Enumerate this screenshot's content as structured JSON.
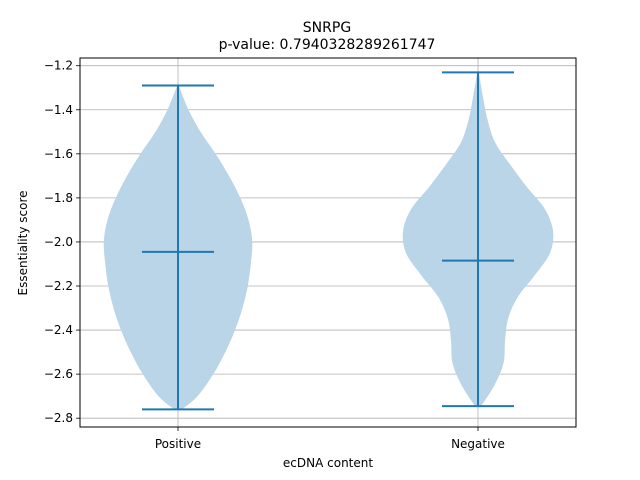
{
  "chart_data": {
    "type": "violin",
    "title": "SNRPG",
    "subtitle": "p-value: 0.7940328289261747",
    "xlabel": "ecDNA content",
    "ylabel": "Essentiality score",
    "categories": [
      "Positive",
      "Negative"
    ],
    "ylim": [
      -2.84,
      -1.165
    ],
    "yticks": [
      -1.2,
      -1.4,
      -1.6,
      -1.8,
      -2.0,
      -2.2,
      -2.4,
      -2.6,
      -2.8
    ],
    "ytick_labels": [
      "−1.2",
      "−1.4",
      "−1.6",
      "−1.8",
      "−2.0",
      "−2.2",
      "−2.4",
      "−2.6",
      "−2.8"
    ],
    "grid": true,
    "violins": [
      {
        "category": "Positive",
        "min": -2.76,
        "max": -1.29,
        "mean": -2.045,
        "profile": [
          [
            -1.29,
            0.01
          ],
          [
            -1.4,
            0.14
          ],
          [
            -1.5,
            0.3
          ],
          [
            -1.6,
            0.5
          ],
          [
            -1.7,
            0.68
          ],
          [
            -1.8,
            0.83
          ],
          [
            -1.9,
            0.94
          ],
          [
            -2.0,
            0.99
          ],
          [
            -2.1,
            0.97
          ],
          [
            -2.2,
            0.93
          ],
          [
            -2.3,
            0.86
          ],
          [
            -2.4,
            0.76
          ],
          [
            -2.5,
            0.63
          ],
          [
            -2.6,
            0.47
          ],
          [
            -2.7,
            0.26
          ],
          [
            -2.76,
            0.05
          ]
        ]
      },
      {
        "category": "Negative",
        "min": -2.745,
        "max": -1.23,
        "mean": -2.085,
        "profile": [
          [
            -1.23,
            0.01
          ],
          [
            -1.35,
            0.07
          ],
          [
            -1.45,
            0.13
          ],
          [
            -1.55,
            0.23
          ],
          [
            -1.65,
            0.43
          ],
          [
            -1.75,
            0.65
          ],
          [
            -1.85,
            0.89
          ],
          [
            -1.95,
            1.0
          ],
          [
            -2.05,
            0.96
          ],
          [
            -2.15,
            0.76
          ],
          [
            -2.25,
            0.53
          ],
          [
            -2.35,
            0.4
          ],
          [
            -2.45,
            0.36
          ],
          [
            -2.55,
            0.34
          ],
          [
            -2.65,
            0.22
          ],
          [
            -2.745,
            0.04
          ]
        ]
      }
    ],
    "colors": {
      "body_fill": "#bad4e8",
      "line": "#1f77b4",
      "grid": "#b0b0b0",
      "axis": "#000000"
    }
  }
}
